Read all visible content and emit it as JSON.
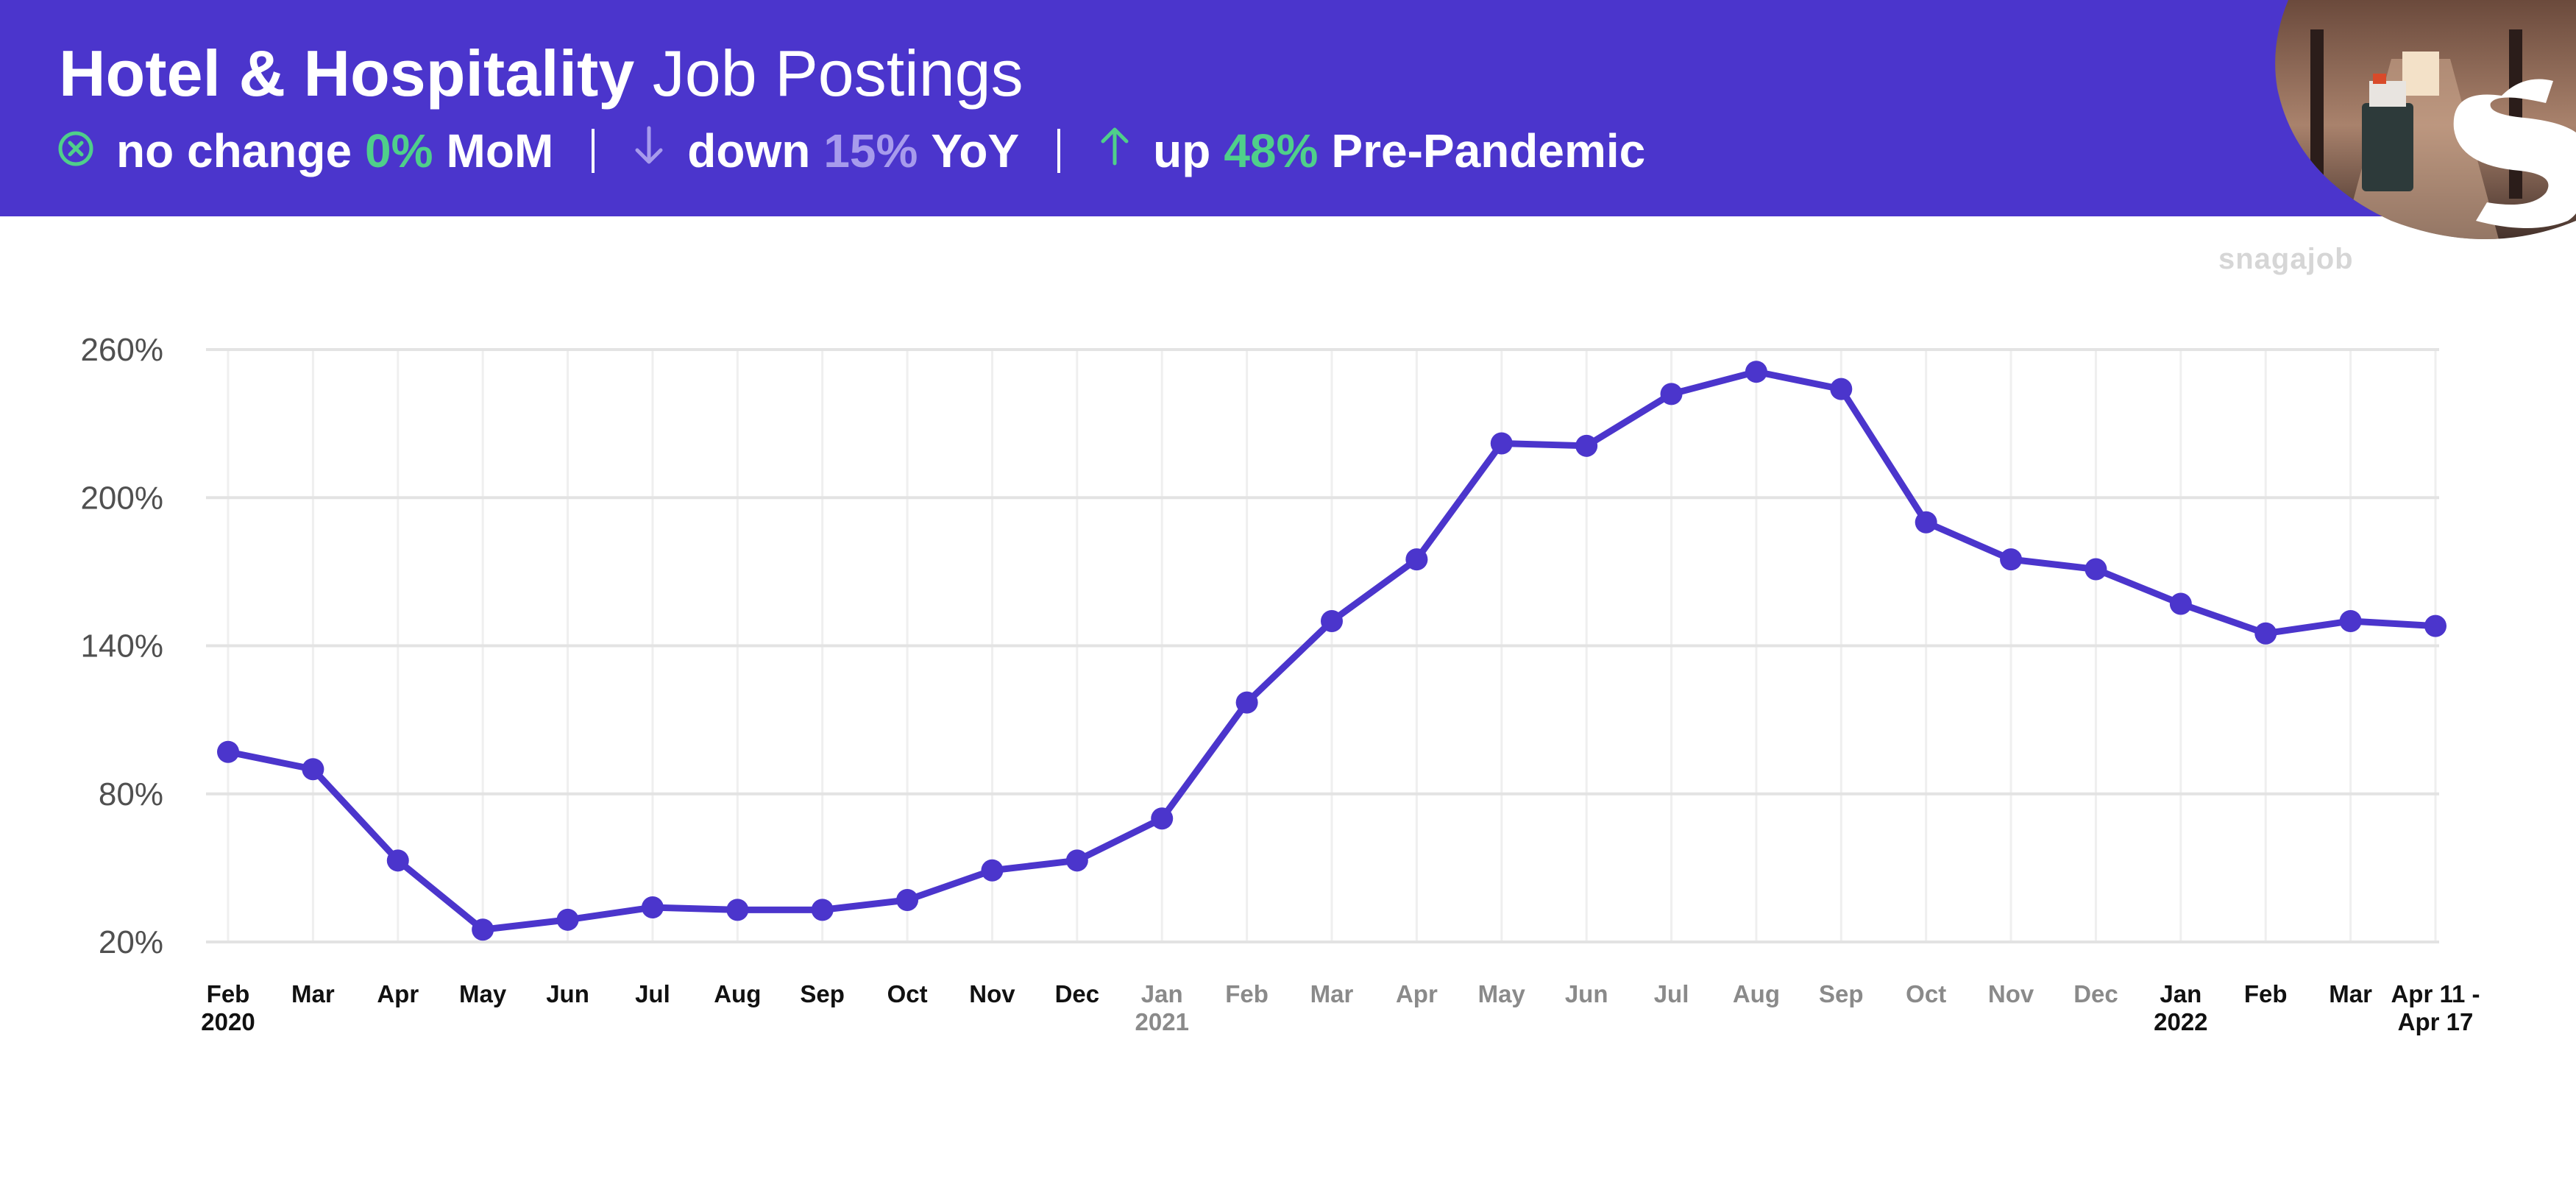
{
  "header": {
    "title_bold": "Hotel & Hospitality",
    "title_light": "Job Postings",
    "stats": [
      {
        "icon": "circle-x-icon",
        "word": "no change",
        "value": "0%",
        "unit": "MoM",
        "color": "#4fcf8a"
      },
      {
        "icon": "arrow-down-icon",
        "word": "down",
        "value": "15%",
        "unit": "YoY",
        "color": "#a79bec"
      },
      {
        "icon": "arrow-up-icon",
        "word": "up",
        "value": "48%",
        "unit": "Pre-Pandemic",
        "color": "#4fcf8a"
      }
    ],
    "brand_color": "#4b35cc"
  },
  "watermark": "snagajob",
  "chart_data": {
    "type": "line",
    "title": "Hotel & Hospitality Job Postings",
    "ylim": [
      20,
      260
    ],
    "yticks": [
      "20%",
      "80%",
      "140%",
      "200%",
      "260%"
    ],
    "ytick_values": [
      20,
      80,
      140,
      200,
      260
    ],
    "grid": true,
    "line_color": "#4b35cc",
    "categories": [
      {
        "label": "Feb",
        "sub": "2020",
        "muted": false
      },
      {
        "label": "Mar",
        "sub": "",
        "muted": false
      },
      {
        "label": "Apr",
        "sub": "",
        "muted": false
      },
      {
        "label": "May",
        "sub": "",
        "muted": false
      },
      {
        "label": "Jun",
        "sub": "",
        "muted": false
      },
      {
        "label": "Jul",
        "sub": "",
        "muted": false
      },
      {
        "label": "Aug",
        "sub": "",
        "muted": false
      },
      {
        "label": "Sep",
        "sub": "",
        "muted": false
      },
      {
        "label": "Oct",
        "sub": "",
        "muted": false
      },
      {
        "label": "Nov",
        "sub": "",
        "muted": false
      },
      {
        "label": "Dec",
        "sub": "",
        "muted": false
      },
      {
        "label": "Jan",
        "sub": "2021",
        "muted": true
      },
      {
        "label": "Feb",
        "sub": "",
        "muted": true
      },
      {
        "label": "Mar",
        "sub": "",
        "muted": true
      },
      {
        "label": "Apr",
        "sub": "",
        "muted": true
      },
      {
        "label": "May",
        "sub": "",
        "muted": true
      },
      {
        "label": "Jun",
        "sub": "",
        "muted": true
      },
      {
        "label": "Jul",
        "sub": "",
        "muted": true
      },
      {
        "label": "Aug",
        "sub": "",
        "muted": true
      },
      {
        "label": "Sep",
        "sub": "",
        "muted": true
      },
      {
        "label": "Oct",
        "sub": "",
        "muted": true
      },
      {
        "label": "Nov",
        "sub": "",
        "muted": true
      },
      {
        "label": "Dec",
        "sub": "",
        "muted": true
      },
      {
        "label": "Jan",
        "sub": "2022",
        "muted": false
      },
      {
        "label": "Feb",
        "sub": "",
        "muted": false
      },
      {
        "label": "Mar",
        "sub": "",
        "muted": false
      },
      {
        "label": "Apr 11 -",
        "sub": "Apr 17",
        "muted": false
      }
    ],
    "values": [
      97,
      90,
      53,
      25,
      29,
      34,
      33,
      33,
      37,
      49,
      53,
      70,
      117,
      150,
      175,
      222,
      221,
      242,
      251,
      244,
      190,
      175,
      171,
      157,
      145,
      150,
      148
    ]
  }
}
